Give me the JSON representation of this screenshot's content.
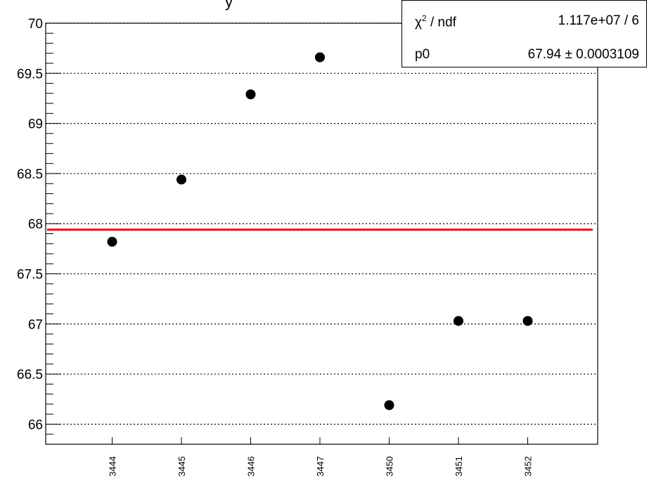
{
  "chart_data": {
    "type": "scatter",
    "title_fragment": "y",
    "categories": [
      "3444",
      "3445",
      "3446",
      "3447",
      "3450",
      "3451",
      "3452"
    ],
    "values": [
      67.82,
      68.44,
      69.29,
      69.66,
      66.19,
      67.03,
      67.03
    ],
    "ylim": [
      65.8,
      70.0
    ],
    "yticks": [
      "66",
      "66.5",
      "67",
      "67.5",
      "68",
      "68.5",
      "69",
      "69.5",
      "70"
    ],
    "grid": true,
    "fit_line": {
      "value": 67.94,
      "color": "#ff0000"
    },
    "point_color": "#000000",
    "stats": {
      "chi_label": "/ ndf",
      "chi_value": "1.117e+07 / 6",
      "p0_label": "p0",
      "p0_value": "67.94 ± 0.0003109"
    }
  }
}
